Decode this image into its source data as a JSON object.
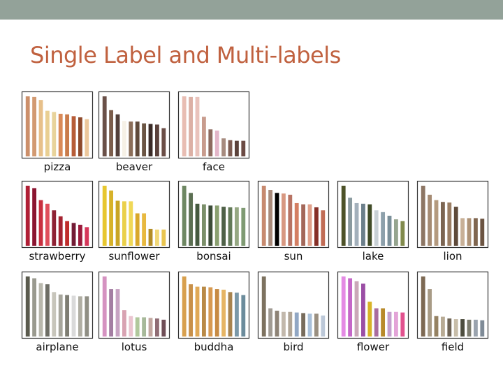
{
  "slide": {
    "title": "Single Label and Multi-labels",
    "band_color": "#93a299",
    "title_color": "#c0613f"
  },
  "panels": [
    {
      "label": "pizza",
      "bars": [
        {
          "h": 1.0,
          "c": "#cc8f6a"
        },
        {
          "h": 0.99,
          "c": "#d29a72"
        },
        {
          "h": 0.94,
          "c": "#e7c08a"
        },
        {
          "h": 0.76,
          "c": "#e9cf92"
        },
        {
          "h": 0.74,
          "c": "#e8d39b"
        },
        {
          "h": 0.71,
          "c": "#d98a58"
        },
        {
          "h": 0.7,
          "c": "#c97b4b"
        },
        {
          "h": 0.67,
          "c": "#b75d38"
        },
        {
          "h": 0.65,
          "c": "#8e4a2c"
        },
        {
          "h": 0.62,
          "c": "#ecc79c"
        }
      ]
    },
    {
      "label": "beaver",
      "bars": [
        {
          "h": 1.0,
          "c": "#6a5048"
        },
        {
          "h": 0.77,
          "c": "#7b5d4b"
        },
        {
          "h": 0.7,
          "c": "#53403a"
        },
        {
          "h": 0.59,
          "c": "#f6f1e6"
        },
        {
          "h": 0.58,
          "c": "#8a6d58"
        },
        {
          "h": 0.58,
          "c": "#5f4a3b"
        },
        {
          "h": 0.55,
          "c": "#6b5544"
        },
        {
          "h": 0.54,
          "c": "#3b2b27"
        },
        {
          "h": 0.53,
          "c": "#5a413b"
        },
        {
          "h": 0.47,
          "c": "#6a4d46"
        }
      ]
    },
    {
      "label": "face",
      "bars": [
        {
          "h": 1.0,
          "c": "#e8bdb3"
        },
        {
          "h": 0.99,
          "c": "#dcb0a5"
        },
        {
          "h": 0.99,
          "c": "#e9c3bc"
        },
        {
          "h": 0.66,
          "c": "#c89c8e"
        },
        {
          "h": 0.45,
          "c": "#8d6a5f"
        },
        {
          "h": 0.43,
          "c": "#e3b6c9"
        },
        {
          "h": 0.3,
          "c": "#a68b7f"
        },
        {
          "h": 0.27,
          "c": "#7d5c52"
        },
        {
          "h": 0.26,
          "c": "#5b423b"
        },
        {
          "h": 0.26,
          "c": "#6c4b44"
        }
      ]
    },
    {
      "label": "strawberry",
      "bars": [
        {
          "h": 1.0,
          "c": "#b01f35"
        },
        {
          "h": 0.96,
          "c": "#8b1631"
        },
        {
          "h": 0.76,
          "c": "#c9303f"
        },
        {
          "h": 0.7,
          "c": "#e04f5b"
        },
        {
          "h": 0.59,
          "c": "#8e2234"
        },
        {
          "h": 0.49,
          "c": "#a52330"
        },
        {
          "h": 0.41,
          "c": "#c02d2b"
        },
        {
          "h": 0.38,
          "c": "#731c35"
        },
        {
          "h": 0.35,
          "c": "#9b1b3c"
        },
        {
          "h": 0.31,
          "c": "#d6375a"
        }
      ]
    },
    {
      "label": "sunflower",
      "bars": [
        {
          "h": 1.0,
          "c": "#e7c72f"
        },
        {
          "h": 0.92,
          "c": "#d7b229"
        },
        {
          "h": 0.75,
          "c": "#c9a525"
        },
        {
          "h": 0.74,
          "c": "#ead04a"
        },
        {
          "h": 0.74,
          "c": "#f0d857"
        },
        {
          "h": 0.54,
          "c": "#d9a82a"
        },
        {
          "h": 0.54,
          "c": "#e8b940"
        },
        {
          "h": 0.28,
          "c": "#b38d25"
        },
        {
          "h": 0.27,
          "c": "#f1d878"
        },
        {
          "h": 0.27,
          "c": "#e9c550"
        }
      ]
    },
    {
      "label": "bonsai",
      "bars": [
        {
          "h": 1.0,
          "c": "#6e8762"
        },
        {
          "h": 0.88,
          "c": "#5b6f52"
        },
        {
          "h": 0.7,
          "c": "#465a40"
        },
        {
          "h": 0.69,
          "c": "#7b8f6a"
        },
        {
          "h": 0.67,
          "c": "#3c4c37"
        },
        {
          "h": 0.67,
          "c": "#8aa070"
        },
        {
          "h": 0.65,
          "c": "#4f6148"
        },
        {
          "h": 0.64,
          "c": "#637a58"
        },
        {
          "h": 0.64,
          "c": "#96a883"
        },
        {
          "h": 0.63,
          "c": "#7f9a73"
        }
      ]
    },
    {
      "label": "sun",
      "bars": [
        {
          "h": 1.0,
          "c": "#c78a6f"
        },
        {
          "h": 0.93,
          "c": "#a88a7a"
        },
        {
          "h": 0.88,
          "c": "#000000"
        },
        {
          "h": 0.87,
          "c": "#d89881"
        },
        {
          "h": 0.85,
          "c": "#b87363"
        },
        {
          "h": 0.71,
          "c": "#d47f63"
        },
        {
          "h": 0.69,
          "c": "#a4685a"
        },
        {
          "h": 0.69,
          "c": "#e0a08a"
        },
        {
          "h": 0.64,
          "c": "#862f27"
        },
        {
          "h": 0.59,
          "c": "#c16c55"
        }
      ]
    },
    {
      "label": "lake",
      "bars": [
        {
          "h": 1.0,
          "c": "#4d5228"
        },
        {
          "h": 0.8,
          "c": "#8a9a9f"
        },
        {
          "h": 0.71,
          "c": "#a3b0bb"
        },
        {
          "h": 0.7,
          "c": "#6c7f8b"
        },
        {
          "h": 0.69,
          "c": "#404b27"
        },
        {
          "h": 0.59,
          "c": "#c8d0d5"
        },
        {
          "h": 0.56,
          "c": "#8da0ab"
        },
        {
          "h": 0.5,
          "c": "#7a8f99"
        },
        {
          "h": 0.44,
          "c": "#96a58f"
        },
        {
          "h": 0.41,
          "c": "#818a4c"
        }
      ]
    },
    {
      "label": "lion",
      "bars": [
        {
          "h": 1.0,
          "c": "#8d7664"
        },
        {
          "h": 0.85,
          "c": "#a58b73"
        },
        {
          "h": 0.76,
          "c": "#b49a7f"
        },
        {
          "h": 0.73,
          "c": "#7c6552"
        },
        {
          "h": 0.72,
          "c": "#9a7d63"
        },
        {
          "h": 0.65,
          "c": "#5e4a3a"
        },
        {
          "h": 0.46,
          "c": "#c8b097"
        },
        {
          "h": 0.46,
          "c": "#ae9276"
        },
        {
          "h": 0.46,
          "c": "#80664f"
        },
        {
          "h": 0.45,
          "c": "#6c5442"
        }
      ]
    },
    {
      "label": "airplane",
      "bars": [
        {
          "h": 1.0,
          "c": "#5b5b4e"
        },
        {
          "h": 0.97,
          "c": "#9a9a8f"
        },
        {
          "h": 0.89,
          "c": "#b9b8ad"
        },
        {
          "h": 0.87,
          "c": "#6e6e66"
        },
        {
          "h": 0.74,
          "c": "#c7c5bb"
        },
        {
          "h": 0.7,
          "c": "#a7a69c"
        },
        {
          "h": 0.69,
          "c": "#7e7d73"
        },
        {
          "h": 0.68,
          "c": "#dadada"
        },
        {
          "h": 0.67,
          "c": "#b0aea3"
        },
        {
          "h": 0.67,
          "c": "#8f8e84"
        }
      ]
    },
    {
      "label": "lotus",
      "bars": [
        {
          "h": 1.0,
          "c": "#d592c1"
        },
        {
          "h": 0.79,
          "c": "#a47ea2"
        },
        {
          "h": 0.79,
          "c": "#c7a3c2"
        },
        {
          "h": 0.44,
          "c": "#d8a3b2"
        },
        {
          "h": 0.34,
          "c": "#eac5d0"
        },
        {
          "h": 0.32,
          "c": "#b0c89c"
        },
        {
          "h": 0.32,
          "c": "#a7b99a"
        },
        {
          "h": 0.31,
          "c": "#c2a7a0"
        },
        {
          "h": 0.3,
          "c": "#8f6c74"
        },
        {
          "h": 0.28,
          "c": "#6f4e57"
        }
      ]
    },
    {
      "label": "buddha",
      "bars": [
        {
          "h": 1.0,
          "c": "#d8a04e"
        },
        {
          "h": 0.87,
          "c": "#c89049"
        },
        {
          "h": 0.83,
          "c": "#e0a957"
        },
        {
          "h": 0.83,
          "c": "#b98a47"
        },
        {
          "h": 0.82,
          "c": "#d79a52"
        },
        {
          "h": 0.79,
          "c": "#c78b44"
        },
        {
          "h": 0.78,
          "c": "#e6b565"
        },
        {
          "h": 0.74,
          "c": "#a7834e"
        },
        {
          "h": 0.73,
          "c": "#7a98a8"
        },
        {
          "h": 0.69,
          "c": "#6c8c9c"
        }
      ]
    },
    {
      "label": "bird",
      "bars": [
        {
          "h": 1.0,
          "c": "#7d7260"
        },
        {
          "h": 0.47,
          "c": "#a09b93"
        },
        {
          "h": 0.43,
          "c": "#8d8376"
        },
        {
          "h": 0.41,
          "c": "#c2b8ac"
        },
        {
          "h": 0.41,
          "c": "#b0a596"
        },
        {
          "h": 0.4,
          "c": "#91a7c4"
        },
        {
          "h": 0.39,
          "c": "#786c5c"
        },
        {
          "h": 0.38,
          "c": "#a9c0d9"
        },
        {
          "h": 0.38,
          "c": "#9a8f80"
        },
        {
          "h": 0.35,
          "c": "#bcc8d8"
        }
      ]
    },
    {
      "label": "flower",
      "bars": [
        {
          "h": 1.0,
          "c": "#e48be4"
        },
        {
          "h": 0.97,
          "c": "#c567c8"
        },
        {
          "h": 0.92,
          "c": "#caa8b8"
        },
        {
          "h": 0.88,
          "c": "#9b4ea5"
        },
        {
          "h": 0.58,
          "c": "#d8b327"
        },
        {
          "h": 0.47,
          "c": "#a96c9e"
        },
        {
          "h": 0.47,
          "c": "#b88a2b"
        },
        {
          "h": 0.41,
          "c": "#c49fcd"
        },
        {
          "h": 0.41,
          "c": "#e3a3d7"
        },
        {
          "h": 0.4,
          "c": "#e2518e"
        }
      ]
    },
    {
      "label": "field",
      "bars": [
        {
          "h": 1.0,
          "c": "#7d6953"
        },
        {
          "h": 0.79,
          "c": "#a89b86"
        },
        {
          "h": 0.34,
          "c": "#958263"
        },
        {
          "h": 0.33,
          "c": "#b8ab95"
        },
        {
          "h": 0.3,
          "c": "#6e6355"
        },
        {
          "h": 0.29,
          "c": "#c7bda9"
        },
        {
          "h": 0.29,
          "c": "#4d4d3f"
        },
        {
          "h": 0.28,
          "c": "#7c7c6e"
        },
        {
          "h": 0.28,
          "c": "#9aa3ae"
        },
        {
          "h": 0.27,
          "c": "#7f8b97"
        }
      ]
    }
  ]
}
